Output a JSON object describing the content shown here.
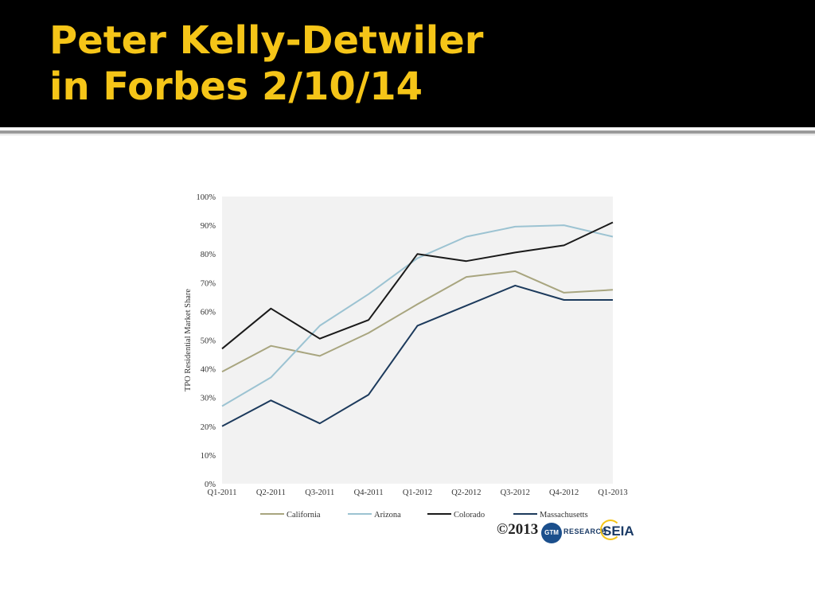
{
  "slide": {
    "title_line1": "Peter Kelly-Detwiler",
    "title_line2": "in Forbes 2/10/14",
    "title_color": "#f5c518",
    "header_background": "#000000"
  },
  "chart_data": {
    "type": "line",
    "categories": [
      "Q1-2011",
      "Q2-2011",
      "Q3-2011",
      "Q4-2011",
      "Q1-2012",
      "Q2-2012",
      "Q3-2012",
      "Q4-2012",
      "Q1-2013"
    ],
    "ylabel": "TPO Residential Market Share",
    "xlabel": "",
    "ylim": [
      0,
      100
    ],
    "y_ticks": [
      "0%",
      "10%",
      "20%",
      "30%",
      "40%",
      "50%",
      "60%",
      "70%",
      "80%",
      "90%",
      "100%"
    ],
    "grid": false,
    "plot_background": "#f2f2f2",
    "legend_position": "bottom",
    "series": [
      {
        "name": "California",
        "color": "#a8a57f",
        "values": [
          39,
          48,
          44.5,
          52.5,
          62.5,
          72,
          74,
          66.5,
          67.5
        ]
      },
      {
        "name": "Arizona",
        "color": "#9cc3d2",
        "values": [
          27,
          37,
          55,
          66,
          78.5,
          86,
          89.5,
          90,
          86
        ]
      },
      {
        "name": "Colorado",
        "color": "#1a1a1a",
        "values": [
          47,
          61,
          50.5,
          57,
          80,
          77.5,
          80.5,
          83,
          91
        ]
      },
      {
        "name": "Massachusetts",
        "color": "#1c3a5c",
        "values": [
          20,
          29,
          21,
          31,
          55,
          62,
          69,
          64,
          64
        ]
      }
    ]
  },
  "branding": {
    "copyright": "©2013",
    "gtm": "GTM",
    "gtm_research": "RESEARCH",
    "seia": "SEIA"
  }
}
